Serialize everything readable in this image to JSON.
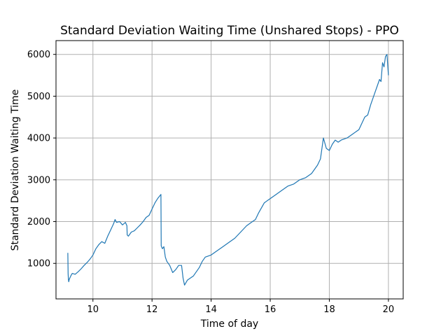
{
  "chart_data": {
    "type": "line",
    "title": "Standard Deviation Waiting Time (Unshared Stops) - PPO",
    "xlabel": "Time of day",
    "ylabel": "Standard Deviation Waiting Time",
    "xlim": [
      8.75,
      20.5
    ],
    "ylim": [
      150,
      6330
    ],
    "xticks": [
      10,
      12,
      14,
      16,
      18,
      20
    ],
    "yticks": [
      1000,
      2000,
      3000,
      4000,
      5000,
      6000
    ],
    "grid": true,
    "line_color": "#1f77b4",
    "series": [
      {
        "x": [
          9.15,
          9.16,
          9.17,
          9.18,
          9.2,
          9.25,
          9.3,
          9.4,
          9.5,
          9.6,
          9.7,
          9.8,
          9.9,
          10.0,
          10.1,
          10.2,
          10.3,
          10.4,
          10.5,
          10.6,
          10.7,
          10.75,
          10.8,
          10.9,
          11.0,
          11.1,
          11.15,
          11.16,
          11.2,
          11.3,
          11.4,
          11.5,
          11.6,
          11.7,
          11.8,
          11.9,
          12.0,
          12.1,
          12.2,
          12.3,
          12.31,
          12.35,
          12.4,
          12.45,
          12.5,
          12.6,
          12.7,
          12.8,
          12.9,
          13.0,
          13.05,
          13.1,
          13.2,
          13.3,
          13.4,
          13.5,
          13.6,
          13.7,
          13.8,
          14.0,
          14.2,
          14.4,
          14.6,
          14.8,
          15.0,
          15.2,
          15.4,
          15.5,
          15.6,
          15.8,
          16.0,
          16.2,
          16.4,
          16.6,
          16.8,
          17.0,
          17.2,
          17.4,
          17.6,
          17.7,
          17.8,
          17.9,
          18.0,
          18.1,
          18.2,
          18.3,
          18.4,
          18.6,
          18.8,
          19.0,
          19.2,
          19.3,
          19.4,
          19.5,
          19.6,
          19.7,
          19.75,
          19.8,
          19.85,
          19.9,
          19.95,
          20.0
        ],
        "y": [
          1250,
          760,
          620,
          560,
          620,
          700,
          760,
          740,
          800,
          870,
          950,
          1020,
          1100,
          1200,
          1350,
          1450,
          1520,
          1480,
          1650,
          1800,
          1950,
          2050,
          1980,
          2000,
          1920,
          1980,
          1900,
          1680,
          1650,
          1750,
          1780,
          1850,
          1920,
          2000,
          2100,
          2150,
          2300,
          2450,
          2560,
          2650,
          1420,
          1350,
          1400,
          1150,
          1050,
          950,
          780,
          850,
          950,
          950,
          650,
          480,
          600,
          650,
          700,
          800,
          900,
          1050,
          1150,
          1200,
          1300,
          1400,
          1500,
          1600,
          1750,
          1900,
          2000,
          2050,
          2200,
          2450,
          2550,
          2650,
          2750,
          2850,
          2900,
          3000,
          3050,
          3150,
          3350,
          3500,
          4000,
          3750,
          3700,
          3850,
          3950,
          3900,
          3950,
          4000,
          4100,
          4200,
          4500,
          4550,
          4800,
          5000,
          5200,
          5400,
          5350,
          5800,
          5700,
          5950,
          6000,
          5500
        ]
      }
    ]
  }
}
